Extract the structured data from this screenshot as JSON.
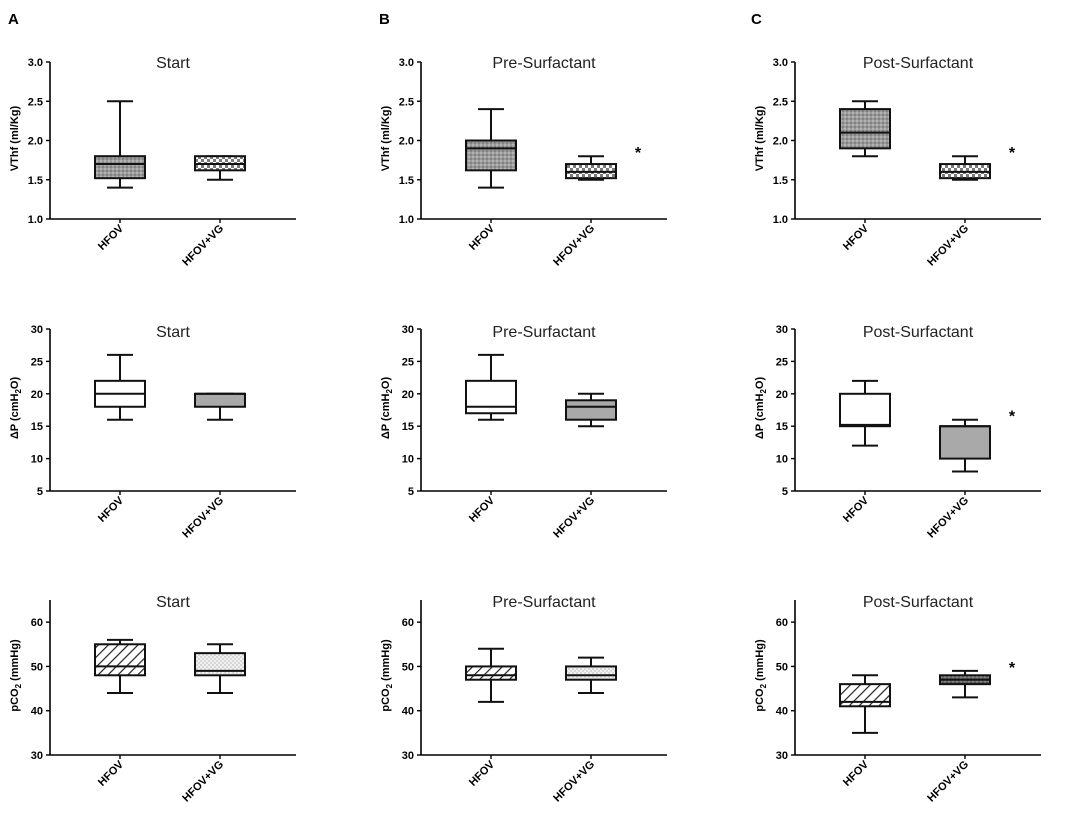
{
  "panel_letters": [
    "A",
    "B",
    "C"
  ],
  "categories": [
    "HFOV",
    "HFOV+VG"
  ],
  "chart_data": [
    {
      "id": "A1",
      "type": "box",
      "panel": "A",
      "row": "vthf",
      "title": "Start",
      "ylabel": "VThf (ml/Kg)",
      "ylim": [
        1.0,
        3.0
      ],
      "yticks": [
        1.0,
        1.5,
        2.0,
        2.5,
        3.0
      ],
      "tick_format": "0.0",
      "categories": [
        "HFOV",
        "HFOV+VG"
      ],
      "boxes": [
        {
          "min": 1.4,
          "q1": 1.52,
          "median": 1.7,
          "q3": 1.8,
          "max": 2.5,
          "fill": "gray-dots"
        },
        {
          "min": 1.5,
          "q1": 1.62,
          "median": 1.7,
          "q3": 1.8,
          "max": 1.8,
          "fill": "checker"
        }
      ],
      "significance": []
    },
    {
      "id": "B1",
      "type": "box",
      "panel": "B",
      "row": "vthf",
      "title": "Pre-Surfactant",
      "ylabel": "VThf (ml/Kg)",
      "ylim": [
        1.0,
        3.0
      ],
      "yticks": [
        1.0,
        1.5,
        2.0,
        2.5,
        3.0
      ],
      "tick_format": "0.0",
      "categories": [
        "HFOV",
        "HFOV+VG"
      ],
      "boxes": [
        {
          "min": 1.4,
          "q1": 1.62,
          "median": 1.9,
          "q3": 2.0,
          "max": 2.4,
          "fill": "gray-dots"
        },
        {
          "min": 1.5,
          "q1": 1.52,
          "median": 1.6,
          "q3": 1.7,
          "max": 1.8,
          "fill": "checker"
        }
      ],
      "significance": [
        "*"
      ]
    },
    {
      "id": "C1",
      "type": "box",
      "panel": "C",
      "row": "vthf",
      "title": "Post-Surfactant",
      "ylabel": "VThf (ml/Kg)",
      "ylim": [
        1.0,
        3.0
      ],
      "yticks": [
        1.0,
        1.5,
        2.0,
        2.5,
        3.0
      ],
      "tick_format": "0.0",
      "categories": [
        "HFOV",
        "HFOV+VG"
      ],
      "boxes": [
        {
          "min": 1.8,
          "q1": 1.9,
          "median": 2.1,
          "q3": 2.4,
          "max": 2.5,
          "fill": "gray-dots"
        },
        {
          "min": 1.5,
          "q1": 1.52,
          "median": 1.6,
          "q3": 1.7,
          "max": 1.8,
          "fill": "checker"
        }
      ],
      "significance": [
        "*"
      ]
    },
    {
      "id": "A2",
      "type": "box",
      "panel": "A",
      "row": "dp",
      "title": "Start",
      "ylabel": "ΔP (cmH2O)",
      "ylim": [
        5,
        30
      ],
      "yticks": [
        5,
        10,
        15,
        20,
        25,
        30
      ],
      "tick_format": "0",
      "categories": [
        "HFOV",
        "HFOV+VG"
      ],
      "boxes": [
        {
          "min": 16,
          "q1": 18,
          "median": 20,
          "q3": 22,
          "max": 26,
          "fill": "white"
        },
        {
          "min": 16,
          "q1": 18,
          "median": 20,
          "q3": 20,
          "max": 20,
          "fill": "gray"
        }
      ],
      "significance": []
    },
    {
      "id": "B2",
      "type": "box",
      "panel": "B",
      "row": "dp",
      "title": "Pre-Surfactant",
      "ylabel": "ΔP (cmH2O)",
      "ylim": [
        5,
        30
      ],
      "yticks": [
        5,
        10,
        15,
        20,
        25,
        30
      ],
      "tick_format": "0",
      "categories": [
        "HFOV",
        "HFOV+VG"
      ],
      "boxes": [
        {
          "min": 16,
          "q1": 17,
          "median": 18,
          "q3": 22,
          "max": 26,
          "fill": "white"
        },
        {
          "min": 15,
          "q1": 16,
          "median": 18,
          "q3": 19,
          "max": 20,
          "fill": "gray"
        }
      ],
      "significance": []
    },
    {
      "id": "C2",
      "type": "box",
      "panel": "C",
      "row": "dp",
      "title": "Post-Surfactant",
      "ylabel": "ΔP (cmH2O)",
      "ylim": [
        5,
        30
      ],
      "yticks": [
        5,
        10,
        15,
        20,
        25,
        30
      ],
      "tick_format": "0",
      "categories": [
        "HFOV",
        "HFOV+VG"
      ],
      "boxes": [
        {
          "min": 12,
          "q1": 15,
          "median": 15.2,
          "q3": 20,
          "max": 22,
          "fill": "white"
        },
        {
          "min": 8,
          "q1": 10,
          "median": 15,
          "q3": 15,
          "max": 16,
          "fill": "gray"
        }
      ],
      "significance": [
        "*"
      ]
    },
    {
      "id": "A3",
      "type": "box",
      "panel": "A",
      "row": "pco2",
      "title": "Start",
      "ylabel": "pCO2 (mmHg)",
      "ylim": [
        30,
        65
      ],
      "yticks": [
        30,
        40,
        50,
        60
      ],
      "tick_format": "0",
      "categories": [
        "HFOV",
        "HFOV+VG"
      ],
      "boxes": [
        {
          "min": 44,
          "q1": 48,
          "median": 50,
          "q3": 55,
          "max": 56,
          "fill": "hatch"
        },
        {
          "min": 44,
          "q1": 48,
          "median": 49,
          "q3": 53,
          "max": 55,
          "fill": "light-dots"
        }
      ],
      "significance": []
    },
    {
      "id": "B3",
      "type": "box",
      "panel": "B",
      "row": "pco2",
      "title": "Pre-Surfactant",
      "ylabel": "pCO2 (mmHg)",
      "ylim": [
        30,
        65
      ],
      "yticks": [
        30,
        40,
        50,
        60
      ],
      "tick_format": "0",
      "categories": [
        "HFOV",
        "HFOV+VG"
      ],
      "boxes": [
        {
          "min": 42,
          "q1": 47,
          "median": 48,
          "q3": 50,
          "max": 54,
          "fill": "hatch"
        },
        {
          "min": 44,
          "q1": 47,
          "median": 48,
          "q3": 50,
          "max": 52,
          "fill": "light-dots"
        }
      ],
      "significance": []
    },
    {
      "id": "C3",
      "type": "box",
      "panel": "C",
      "row": "pco2",
      "title": "Post-Surfactant",
      "ylabel": "pCO2 (mmHg)",
      "ylim": [
        30,
        65
      ],
      "yticks": [
        30,
        40,
        50,
        60
      ],
      "tick_format": "0",
      "categories": [
        "HFOV",
        "HFOV+VG"
      ],
      "boxes": [
        {
          "min": 35,
          "q1": 41,
          "median": 42,
          "q3": 46,
          "max": 48,
          "fill": "hatch"
        },
        {
          "min": 43,
          "q1": 46,
          "median": 47,
          "q3": 48,
          "max": 49,
          "fill": "dark-dots"
        }
      ],
      "significance": [
        "*"
      ]
    }
  ],
  "colors": {
    "axis": "#000000",
    "box_stroke": "#111111",
    "gray": "#a9a9a9",
    "dark_gray": "#777777",
    "text": "#000000",
    "title_text": "#222222"
  }
}
